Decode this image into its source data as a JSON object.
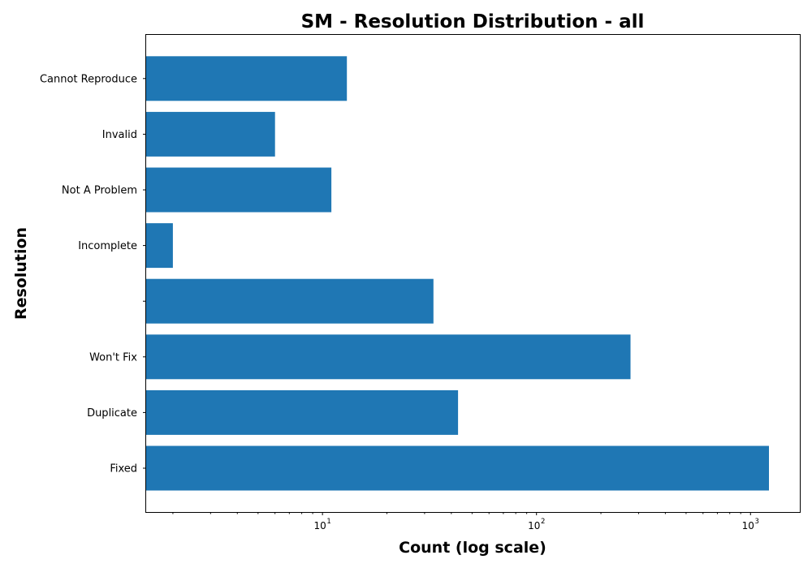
{
  "chart_data": {
    "type": "bar",
    "orientation": "horizontal",
    "title": "SM - Resolution Distribution - all",
    "xlabel": "Count (log scale)",
    "ylabel": "Resolution",
    "xscale": "log",
    "xlim": [
      1.5,
      1700
    ],
    "grid": false,
    "color": "#1f77b4",
    "x_tick_labels": [
      {
        "value": 10,
        "base": "10",
        "exp": "1"
      },
      {
        "value": 100,
        "base": "10",
        "exp": "2"
      },
      {
        "value": 1000,
        "base": "10",
        "exp": "3"
      }
    ],
    "categories": [
      "Fixed",
      "Duplicate",
      "Won't Fix",
      "",
      "Incomplete",
      "Not A Problem",
      "Invalid",
      "Cannot Reproduce"
    ],
    "values": [
      1220,
      43,
      275,
      33,
      2,
      11,
      6,
      13
    ]
  }
}
